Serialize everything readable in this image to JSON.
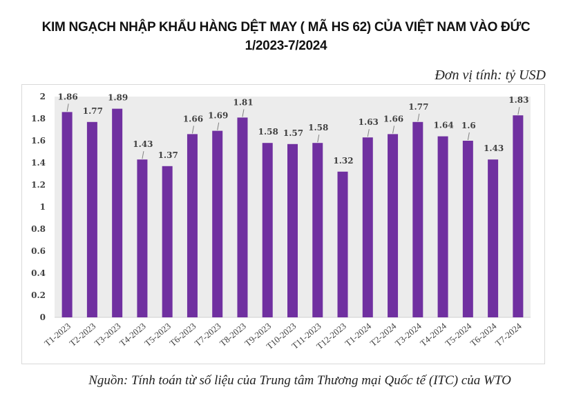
{
  "header": {
    "title_line1": "KIM NGẠCH NHẬP KHẨU HÀNG DỆT MAY ( MÃ HS 62) CỦA VIỆT NAM VÀO ĐỨC",
    "title_line2": "1/2023-7/2024",
    "unit": "Đơn vị tính: tỷ USD"
  },
  "footer": {
    "source": "Nguồn: Tính toán từ số liệu của Trung tâm Thương mại Quốc tế (ITC) của WTO"
  },
  "colors": {
    "bar": "#7030A0",
    "plot_background": "#ececec",
    "text": "#404040"
  },
  "chart_data": {
    "type": "bar",
    "title": "KIM NGẠCH NHẬP KHẨU HÀNG DỆT MAY ( MÃ HS 62) CỦA VIỆT NAM VÀO ĐỨC 1/2023-7/2024",
    "xlabel": "",
    "ylabel": "tỷ USD",
    "ylim": [
      0,
      2
    ],
    "yticks": [
      "0",
      "0.2",
      "0.4",
      "0.6",
      "0.8",
      "1",
      "1.2",
      "1.4",
      "1.6",
      "1.8",
      "2"
    ],
    "ytick_values": [
      0,
      0.2,
      0.4,
      0.6,
      0.8,
      1,
      1.2,
      1.4,
      1.6,
      1.8,
      2
    ],
    "grid": false,
    "legend": "none",
    "categories": [
      "T1-2023",
      "T2-2023",
      "T3-2023",
      "T4-2023",
      "T5-2023",
      "T6-2023",
      "T7-2023",
      "T8-2023",
      "T9-2023",
      "T10-2023",
      "T11-2023",
      "T12-2023",
      "T1-2024",
      "T2-2024",
      "T3-2024",
      "T4-2024",
      "T5-2024",
      "T6-2024",
      "T7-2024"
    ],
    "values": [
      1.86,
      1.77,
      1.89,
      1.43,
      1.37,
      1.66,
      1.69,
      1.81,
      1.58,
      1.57,
      1.58,
      1.32,
      1.63,
      1.66,
      1.77,
      1.64,
      1.6,
      1.43,
      1.83
    ],
    "data_labels": [
      "1.86",
      "1.77",
      "1.89",
      "1.43",
      "1.37",
      "1.66",
      "1.69",
      "1.81",
      "1.58",
      "1.57",
      "1.58",
      "1.32",
      "1.63",
      "1.66",
      "1.77",
      "1.64",
      "1.6",
      "1.43",
      "1.83"
    ]
  }
}
